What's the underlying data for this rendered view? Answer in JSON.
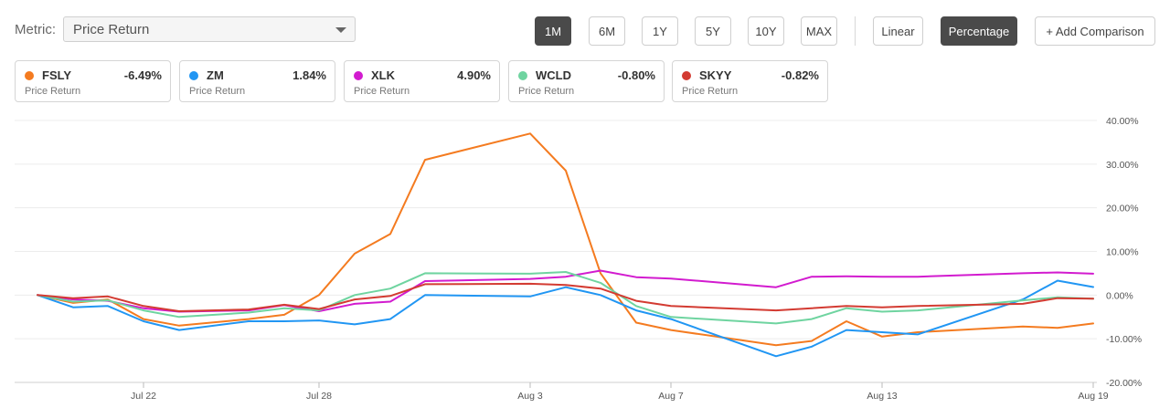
{
  "toolbar": {
    "metric_label": "Metric:",
    "metric_value": "Price Return",
    "ranges": [
      "1M",
      "6M",
      "1Y",
      "5Y",
      "10Y",
      "MAX"
    ],
    "active_range": "1M",
    "scale_linear": "Linear",
    "scale_percentage": "Percentage",
    "active_scale": "Percentage",
    "add_comparison": "+ Add Comparison"
  },
  "legend_cards": [
    {
      "ticker": "FSLY",
      "value": "-6.49%",
      "sub": "Price Return",
      "color": "#f47b20"
    },
    {
      "ticker": "ZM",
      "value": "1.84%",
      "sub": "Price Return",
      "color": "#2196f3"
    },
    {
      "ticker": "XLK",
      "value": "4.90%",
      "sub": "Price Return",
      "color": "#d21bcf"
    },
    {
      "ticker": "WCLD",
      "value": "-0.80%",
      "sub": "Price Return",
      "color": "#6fd4a0"
    },
    {
      "ticker": "SKYY",
      "value": "-0.82%",
      "sub": "Price Return",
      "color": "#d33b32"
    }
  ],
  "chart_data": {
    "type": "line",
    "x": [
      "Jul 19",
      "Jul 20",
      "Jul 21",
      "Jul 22",
      "Jul 23",
      "Jul 24",
      "Jul 27",
      "Jul 28",
      "Jul 29",
      "Jul 30",
      "Jul 31",
      "Aug 3",
      "Aug 4",
      "Aug 5",
      "Aug 6",
      "Aug 7",
      "Aug 10",
      "Aug 11",
      "Aug 12",
      "Aug 13",
      "Aug 14",
      "Aug 17",
      "Aug 18",
      "Aug 19"
    ],
    "x_ticks": [
      "Jul 22",
      "Jul 28",
      "Aug 3",
      "Aug 7",
      "Aug 13",
      "Aug 19"
    ],
    "y_ticks": [
      "40.00%",
      "30.00%",
      "20.00%",
      "10.00%",
      "0.00%",
      "-10.00%",
      "-20.00%"
    ],
    "ylim": [
      -20,
      40
    ],
    "grid": true,
    "series": [
      {
        "name": "FSLY",
        "color": "#f47b20",
        "values": [
          0,
          -1.8,
          -1,
          -5.5,
          -7,
          -5.5,
          -4.5,
          0,
          9.5,
          14,
          31,
          37,
          28.5,
          5,
          -6.3,
          -8,
          -11.5,
          -10.5,
          -6,
          -9.5,
          -8.5,
          -7.2,
          -7.5,
          -6.5
        ]
      },
      {
        "name": "ZM",
        "color": "#2196f3",
        "values": [
          0,
          -2.8,
          -2.5,
          -6,
          -8,
          -6,
          -6,
          -5.8,
          -6.7,
          -5.5,
          0,
          -0.3,
          1.8,
          0,
          -3.5,
          -5.5,
          -14,
          -11.8,
          -8,
          -8.5,
          -9,
          -1,
          3.3,
          1.84
        ]
      },
      {
        "name": "XLK",
        "color": "#d21bcf",
        "values": [
          0,
          -1,
          -1.3,
          -3,
          -3.8,
          -3.5,
          -2.3,
          -3.7,
          -2,
          -1.5,
          3.2,
          3.7,
          4.2,
          5.6,
          4.1,
          3.8,
          1.8,
          4.2,
          4.3,
          4.2,
          4.2,
          5,
          5.2,
          4.9
        ]
      },
      {
        "name": "WCLD",
        "color": "#6fd4a0",
        "values": [
          0,
          -1.5,
          -1.2,
          -3.5,
          -5,
          -4,
          -3,
          -3.5,
          0,
          1.5,
          5,
          4.9,
          5.3,
          2.8,
          -2.5,
          -5,
          -6.5,
          -5.5,
          -3,
          -3.8,
          -3.5,
          -1.2,
          -0.5,
          -0.8
        ]
      },
      {
        "name": "SKYY",
        "color": "#d33b32",
        "values": [
          0,
          -0.7,
          -0.3,
          -2.5,
          -3.7,
          -3.3,
          -2.2,
          -3.2,
          -1,
          -0.2,
          2.5,
          2.6,
          2.3,
          1.5,
          -1.3,
          -2.5,
          -3.5,
          -3,
          -2.5,
          -2.8,
          -2.5,
          -2,
          -0.7,
          -0.82
        ]
      }
    ]
  }
}
